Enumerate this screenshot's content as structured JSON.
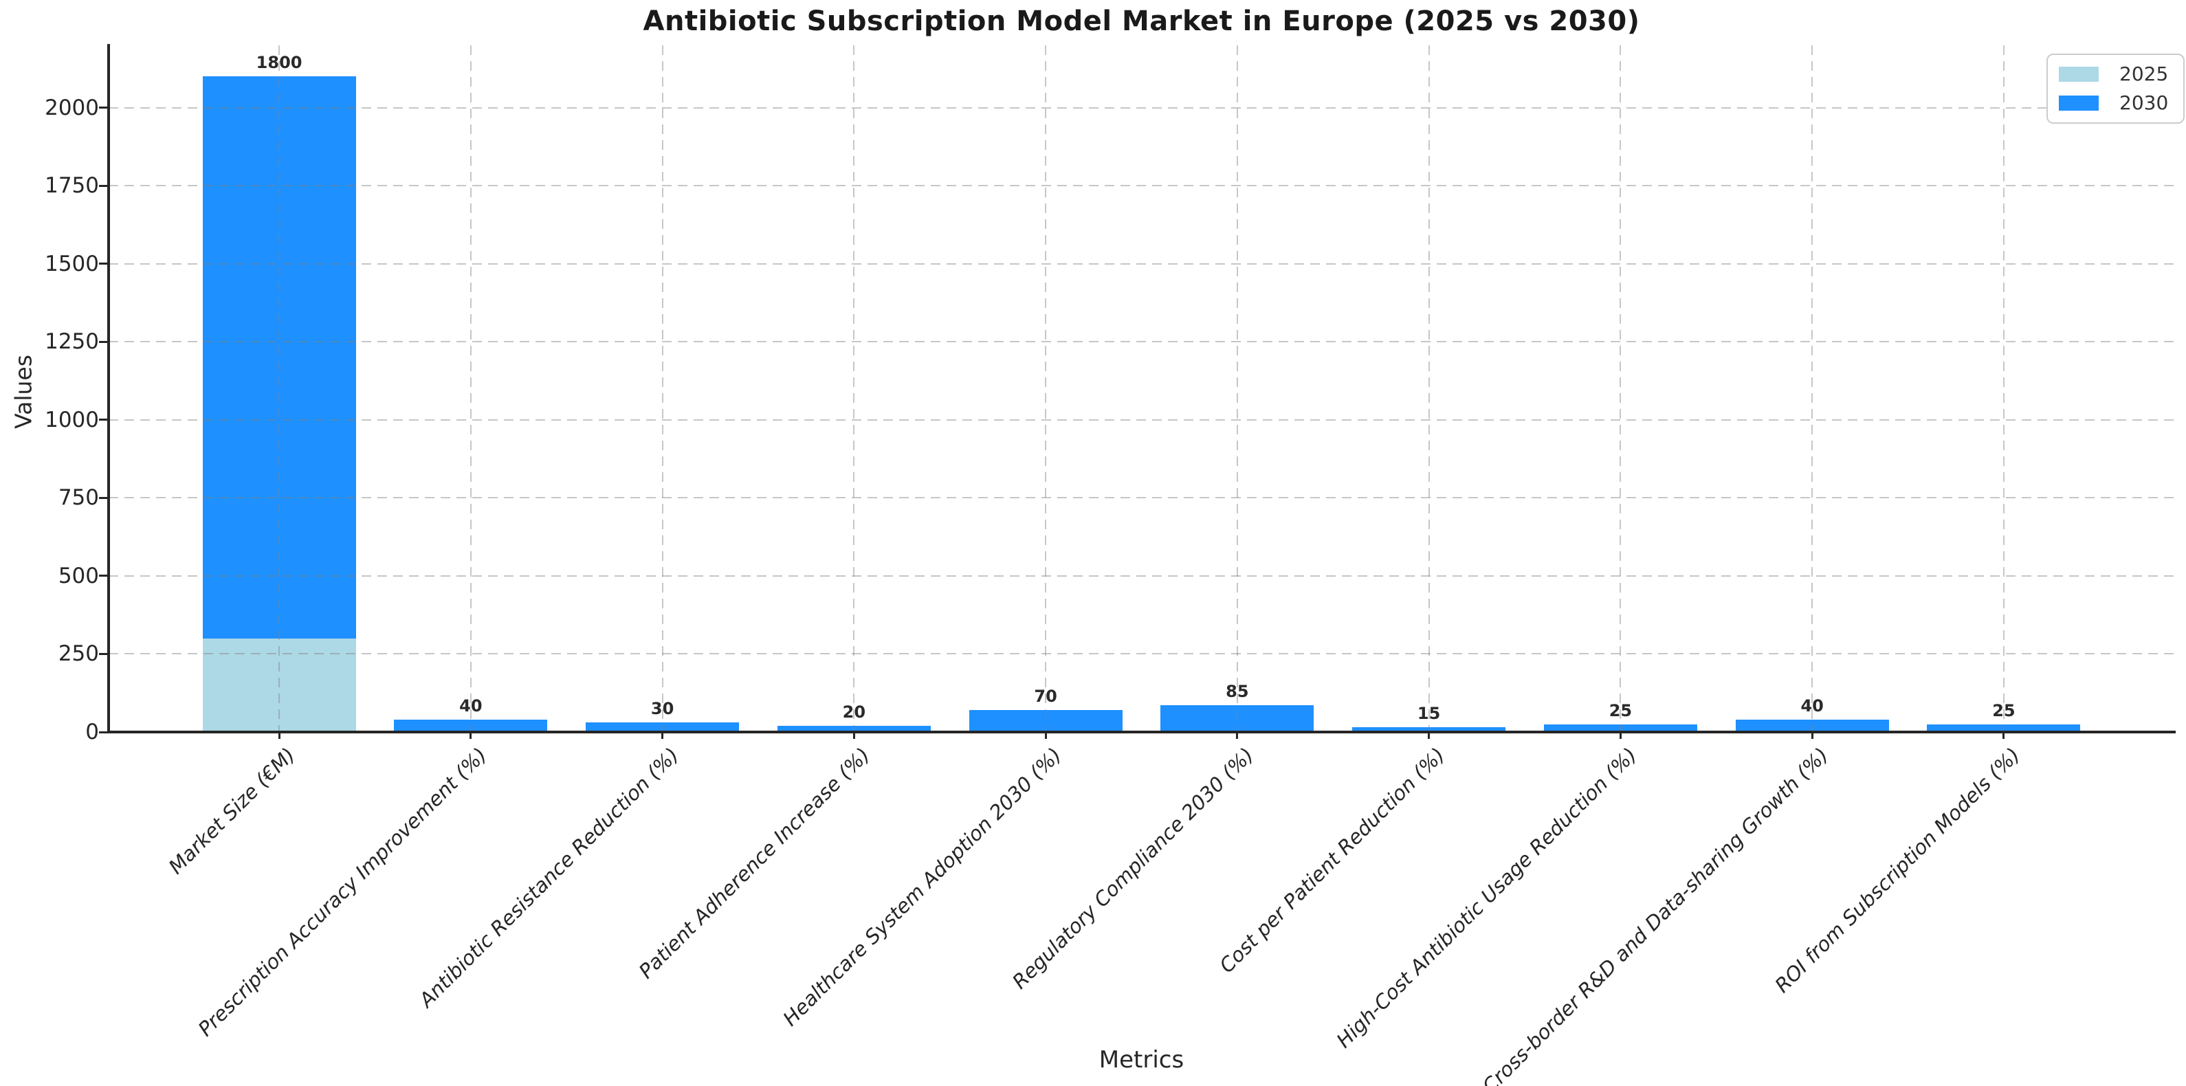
{
  "title": "Antibiotic Subscription Model Market in Europe (2025 vs 2030)",
  "xlabel": "Metrics",
  "ylabel": "Values",
  "chart_data": {
    "type": "bar",
    "stacked": true,
    "title": "Antibiotic Subscription Model Market in Europe (2025 vs 2030)",
    "xlabel": "Metrics",
    "ylabel": "Values",
    "categories": [
      "Market Size (€M)",
      "Prescription Accuracy Improvement (%)",
      "Antibiotic Resistance Reduction (%)",
      "Patient Adherence Increase (%)",
      "Healthcare System Adoption 2030 (%)",
      "Regulatory Compliance 2030 (%)",
      "Cost per Patient Reduction (%)",
      "High-Cost Antibiotic Usage Reduction (%)",
      "Cross-border R&D and Data-sharing Growth (%)",
      "ROI from Subscription Models (%)"
    ],
    "series": [
      {
        "name": "2025",
        "color": "#ADD8E6",
        "values": [
          300,
          0,
          0,
          0,
          0,
          0,
          0,
          0,
          0,
          0
        ]
      },
      {
        "name": "2030",
        "color": "#1E90FF",
        "values": [
          1800,
          40,
          30,
          20,
          70,
          85,
          15,
          25,
          40,
          25
        ]
      }
    ],
    "bar_value_labels": [
      1800,
      40,
      30,
      20,
      70,
      85,
      15,
      25,
      40,
      25
    ],
    "yticks": [
      0,
      250,
      500,
      750,
      1000,
      1250,
      1500,
      1750,
      2000
    ],
    "ylim": [
      0,
      2200
    ],
    "grid": "dashed",
    "legend_position": "upper right"
  }
}
